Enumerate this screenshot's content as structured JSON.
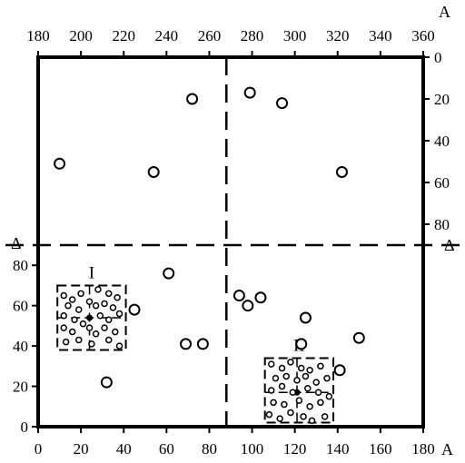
{
  "chart_data": {
    "type": "scatter",
    "title": "",
    "bottom_axis": {
      "label": "A",
      "range": [
        0,
        180
      ],
      "ticks": [
        "0",
        "20",
        "40",
        "60",
        "80",
        "100",
        "120",
        "140",
        "160",
        "180"
      ]
    },
    "top_axis": {
      "label": "A",
      "range": [
        180,
        360
      ],
      "ticks": [
        "180",
        "200",
        "220",
        "240",
        "260",
        "280",
        "300",
        "320",
        "340",
        "360"
      ]
    },
    "left_axis": {
      "range": [
        0,
        90
      ],
      "ticks": [
        "0",
        "20",
        "40",
        "60",
        "80"
      ]
    },
    "right_axis": {
      "range": [
        0,
        90
      ],
      "inverted": true,
      "ticks": [
        "0",
        "20",
        "40",
        "60",
        "80"
      ]
    },
    "divider_label": "Δ",
    "dividers": {
      "x": 88,
      "y": 88
    },
    "points": [
      {
        "x": 10,
        "y": 51,
        "region": "upper"
      },
      {
        "x": 54,
        "y": 55,
        "region": "upper"
      },
      {
        "x": 72,
        "y": 20,
        "region": "upper"
      },
      {
        "x": 99,
        "y": 17,
        "region": "upper"
      },
      {
        "x": 114,
        "y": 22,
        "region": "upper"
      },
      {
        "x": 142,
        "y": 55,
        "region": "upper"
      },
      {
        "x": 61,
        "y": 76,
        "region": "lower"
      },
      {
        "x": 45,
        "y": 58,
        "region": "lower"
      },
      {
        "x": 69,
        "y": 41,
        "region": "lower"
      },
      {
        "x": 77,
        "y": 41,
        "region": "lower"
      },
      {
        "x": 32,
        "y": 22,
        "region": "lower"
      },
      {
        "x": 94,
        "y": 65,
        "region": "lower"
      },
      {
        "x": 98,
        "y": 60,
        "region": "lower"
      },
      {
        "x": 104,
        "y": 64,
        "region": "lower"
      },
      {
        "x": 125,
        "y": 54,
        "region": "lower"
      },
      {
        "x": 123,
        "y": 41,
        "region": "lower"
      },
      {
        "x": 150,
        "y": 44,
        "region": "lower"
      },
      {
        "x": 141,
        "y": 28,
        "region": "lower"
      }
    ],
    "clusters": [
      {
        "label": "I",
        "center": {
          "x": 24,
          "y": 54
        },
        "x_range": [
          9,
          41
        ],
        "y_range": [
          38,
          70
        ],
        "points": [
          {
            "x": 12,
            "y": 65
          },
          {
            "x": 16,
            "y": 63
          },
          {
            "x": 20,
            "y": 66
          },
          {
            "x": 24,
            "y": 62
          },
          {
            "x": 28,
            "y": 68
          },
          {
            "x": 33,
            "y": 66
          },
          {
            "x": 37,
            "y": 64
          },
          {
            "x": 14,
            "y": 60
          },
          {
            "x": 19,
            "y": 58
          },
          {
            "x": 27,
            "y": 60
          },
          {
            "x": 31,
            "y": 61
          },
          {
            "x": 35,
            "y": 59
          },
          {
            "x": 12,
            "y": 55
          },
          {
            "x": 17,
            "y": 53
          },
          {
            "x": 21,
            "y": 51
          },
          {
            "x": 29,
            "y": 55
          },
          {
            "x": 33,
            "y": 53
          },
          {
            "x": 38,
            "y": 56
          },
          {
            "x": 12,
            "y": 49
          },
          {
            "x": 16,
            "y": 47
          },
          {
            "x": 24,
            "y": 49
          },
          {
            "x": 27,
            "y": 46
          },
          {
            "x": 31,
            "y": 49
          },
          {
            "x": 36,
            "y": 47
          },
          {
            "x": 13,
            "y": 42
          },
          {
            "x": 19,
            "y": 43
          },
          {
            "x": 25,
            "y": 41
          },
          {
            "x": 33,
            "y": 43
          },
          {
            "x": 38,
            "y": 40
          }
        ]
      },
      {
        "label": "II",
        "center": {
          "x": 121,
          "y": 17
        },
        "x_range": [
          106,
          138
        ],
        "y_range": [
          2,
          34
        ],
        "points": [
          {
            "x": 109,
            "y": 31
          },
          {
            "x": 114,
            "y": 29
          },
          {
            "x": 118,
            "y": 32
          },
          {
            "x": 123,
            "y": 29
          },
          {
            "x": 127,
            "y": 28
          },
          {
            "x": 132,
            "y": 30
          },
          {
            "x": 111,
            "y": 24
          },
          {
            "x": 116,
            "y": 25
          },
          {
            "x": 121,
            "y": 23
          },
          {
            "x": 125,
            "y": 25
          },
          {
            "x": 130,
            "y": 22
          },
          {
            "x": 135,
            "y": 24
          },
          {
            "x": 109,
            "y": 18
          },
          {
            "x": 114,
            "y": 20
          },
          {
            "x": 119,
            "y": 17
          },
          {
            "x": 126,
            "y": 19
          },
          {
            "x": 131,
            "y": 17
          },
          {
            "x": 136,
            "y": 15
          },
          {
            "x": 110,
            "y": 12
          },
          {
            "x": 115,
            "y": 11
          },
          {
            "x": 122,
            "y": 13
          },
          {
            "x": 127,
            "y": 10
          },
          {
            "x": 132,
            "y": 12
          },
          {
            "x": 108,
            "y": 6
          },
          {
            "x": 113,
            "y": 4
          },
          {
            "x": 118,
            "y": 7
          },
          {
            "x": 124,
            "y": 5
          },
          {
            "x": 128,
            "y": 3
          },
          {
            "x": 134,
            "y": 5
          }
        ]
      }
    ],
    "grid": false,
    "legend": "none"
  }
}
